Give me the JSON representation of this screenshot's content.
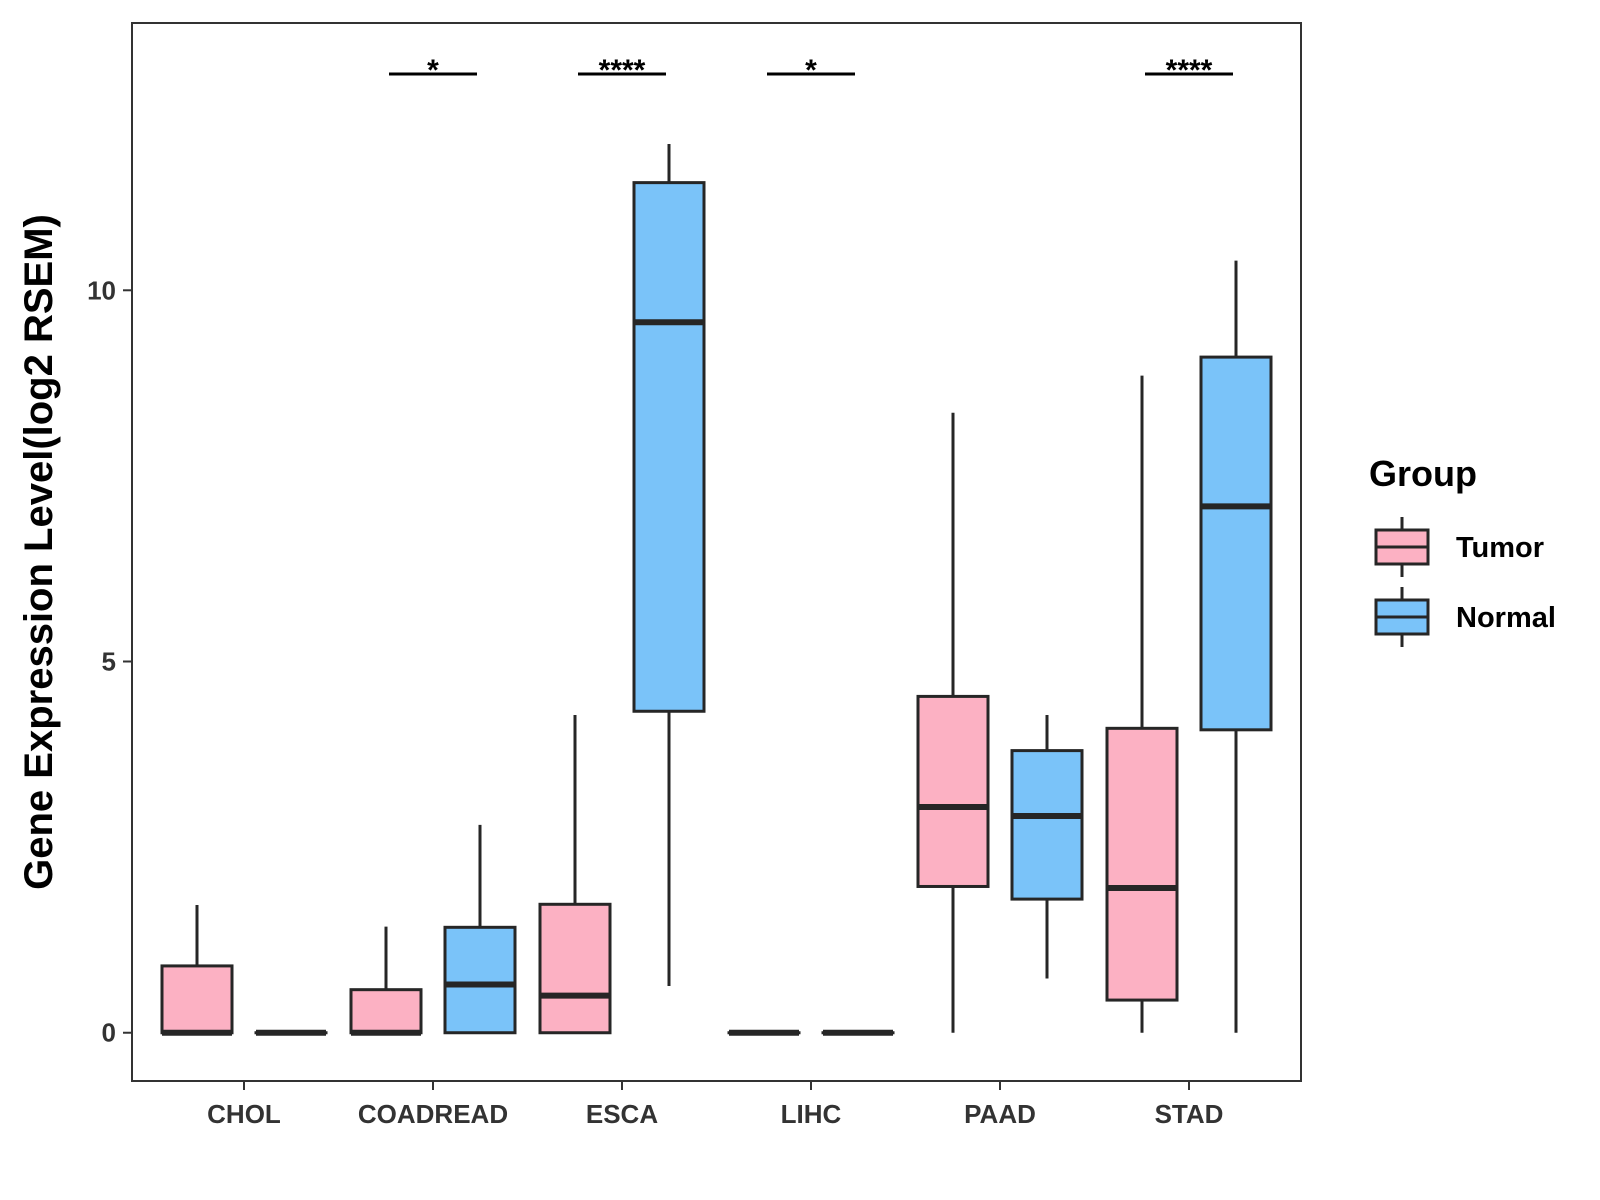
{
  "chart_data": {
    "type": "boxplot",
    "title": "",
    "xlabel": "",
    "ylabel": "Gene Expression Level(log2 RSEM)",
    "ylim": [
      -0.65,
      13.6
    ],
    "yticks": [
      0,
      5,
      10
    ],
    "categories": [
      "CHOL",
      "COADREAD",
      "ESCA",
      "LIHC",
      "PAAD",
      "STAD"
    ],
    "legend": {
      "title": "Group",
      "position": "right",
      "entries": [
        {
          "name": "Tumor",
          "color": "#FCB1C3"
        },
        {
          "name": "Normal",
          "color": "#7AC3F9"
        }
      ]
    },
    "series": [
      {
        "name": "Tumor",
        "color": "#FCB1C3",
        "boxes": [
          {
            "category": "CHOL",
            "min": 0,
            "q1": 0,
            "median": 0,
            "q3": 0.9,
            "max": 1.72
          },
          {
            "category": "COADREAD",
            "min": 0,
            "q1": 0,
            "median": 0,
            "q3": 0.58,
            "max": 1.43
          },
          {
            "category": "ESCA",
            "min": 0,
            "q1": 0,
            "median": 0.5,
            "q3": 1.73,
            "max": 4.28
          },
          {
            "category": "LIHC",
            "min": 0,
            "q1": 0,
            "median": 0,
            "q3": 0,
            "max": 0
          },
          {
            "category": "PAAD",
            "min": 0,
            "q1": 1.97,
            "median": 3.04,
            "q3": 4.53,
            "max": 8.35
          },
          {
            "category": "STAD",
            "min": 0,
            "q1": 0.44,
            "median": 1.95,
            "q3": 4.1,
            "max": 8.85
          }
        ]
      },
      {
        "name": "Normal",
        "color": "#7AC3F9",
        "boxes": [
          {
            "category": "CHOL",
            "min": 0,
            "q1": 0,
            "median": 0,
            "q3": 0,
            "max": 0
          },
          {
            "category": "COADREAD",
            "min": 0,
            "q1": 0,
            "median": 0.65,
            "q3": 1.42,
            "max": 2.8
          },
          {
            "category": "ESCA",
            "min": 0.63,
            "q1": 4.33,
            "median": 9.57,
            "q3": 11.45,
            "max": 11.97
          },
          {
            "category": "LIHC",
            "min": 0,
            "q1": 0,
            "median": 0,
            "q3": 0,
            "max": 0
          },
          {
            "category": "PAAD",
            "min": 0.73,
            "q1": 1.8,
            "median": 2.92,
            "q3": 3.8,
            "max": 4.28
          },
          {
            "category": "STAD",
            "min": 0,
            "q1": 4.08,
            "median": 7.09,
            "q3": 9.1,
            "max": 10.4
          }
        ]
      }
    ],
    "significance": [
      {
        "category": "COADREAD",
        "label": "*"
      },
      {
        "category": "ESCA",
        "label": "****"
      },
      {
        "category": "LIHC",
        "label": "*"
      },
      {
        "category": "STAD",
        "label": "****"
      }
    ]
  }
}
